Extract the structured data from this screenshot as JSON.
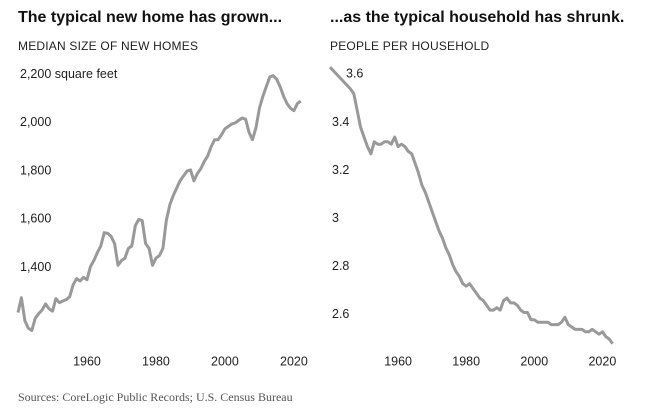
{
  "chart_data": [
    {
      "type": "line",
      "title": "The typical new home has grown...",
      "subtitle": "MEDIAN SIZE OF NEW HOMES",
      "color": "#999999",
      "x": [
        1940,
        1941,
        1942,
        1943,
        1944,
        1945,
        1946,
        1947,
        1948,
        1949,
        1950,
        1951,
        1952,
        1953,
        1954,
        1955,
        1956,
        1957,
        1958,
        1959,
        1960,
        1961,
        1962,
        1963,
        1964,
        1965,
        1966,
        1967,
        1968,
        1969,
        1970,
        1971,
        1972,
        1973,
        1974,
        1975,
        1976,
        1977,
        1978,
        1979,
        1980,
        1981,
        1982,
        1983,
        1984,
        1985,
        1986,
        1987,
        1988,
        1989,
        1990,
        1991,
        1992,
        1993,
        1994,
        1995,
        1996,
        1997,
        1998,
        1999,
        2000,
        2001,
        2002,
        2003,
        2004,
        2005,
        2006,
        2007,
        2008,
        2009,
        2010,
        2011,
        2012,
        2013,
        2014,
        2015,
        2016,
        2017,
        2018,
        2019,
        2020,
        2021,
        2022
      ],
      "values": [
        1214,
        1276,
        1180,
        1150,
        1140,
        1190,
        1210,
        1225,
        1250,
        1230,
        1220,
        1272,
        1255,
        1262,
        1268,
        1280,
        1330,
        1355,
        1345,
        1360,
        1350,
        1404,
        1430,
        1462,
        1490,
        1545,
        1542,
        1530,
        1500,
        1410,
        1430,
        1440,
        1480,
        1490,
        1574,
        1600,
        1595,
        1500,
        1480,
        1410,
        1440,
        1450,
        1480,
        1595,
        1660,
        1698,
        1730,
        1760,
        1780,
        1800,
        1805,
        1760,
        1790,
        1810,
        1840,
        1863,
        1900,
        1930,
        1930,
        1950,
        1975,
        1985,
        1995,
        2000,
        2010,
        2020,
        2015,
        1960,
        1930,
        1980,
        2060,
        2110,
        2150,
        2190,
        2195,
        2180,
        2150,
        2110,
        2080,
        2060,
        2050,
        2080,
        2090
      ],
      "xlim": [
        1940,
        2023.5
      ],
      "xticks": [
        1960,
        1980,
        2000,
        2020
      ],
      "ylim": [
        1080,
        2260
      ],
      "yticks": [
        {
          "value": 1400,
          "label": "1,400"
        },
        {
          "value": 1600,
          "label": "1,600"
        },
        {
          "value": 1800,
          "label": "1,800"
        },
        {
          "value": 2000,
          "label": "2,000"
        },
        {
          "value": 2200,
          "label": "2,200 square feet"
        }
      ]
    },
    {
      "type": "line",
      "title": "...as the typical household has shrunk.",
      "subtitle": "PEOPLE PER HOUSEHOLD",
      "color": "#999999",
      "x": [
        1940,
        1942,
        1944,
        1946,
        1947,
        1948,
        1949,
        1950,
        1951,
        1952,
        1953,
        1954,
        1955,
        1956,
        1957,
        1958,
        1959,
        1960,
        1961,
        1962,
        1963,
        1964,
        1965,
        1966,
        1967,
        1968,
        1969,
        1970,
        1971,
        1972,
        1973,
        1974,
        1975,
        1976,
        1977,
        1978,
        1979,
        1980,
        1981,
        1982,
        1983,
        1984,
        1985,
        1986,
        1987,
        1988,
        1989,
        1990,
        1991,
        1992,
        1993,
        1994,
        1995,
        1996,
        1997,
        1998,
        1999,
        2000,
        2001,
        2002,
        2003,
        2004,
        2005,
        2006,
        2007,
        2008,
        2009,
        2010,
        2011,
        2012,
        2013,
        2014,
        2015,
        2016,
        2017,
        2018,
        2019,
        2020,
        2021,
        2022,
        2023
      ],
      "values": [
        3.63,
        3.6,
        3.57,
        3.54,
        3.52,
        3.45,
        3.38,
        3.34,
        3.3,
        3.27,
        3.32,
        3.31,
        3.31,
        3.32,
        3.32,
        3.31,
        3.34,
        3.3,
        3.31,
        3.3,
        3.28,
        3.27,
        3.23,
        3.19,
        3.14,
        3.11,
        3.07,
        3.03,
        2.99,
        2.95,
        2.92,
        2.88,
        2.85,
        2.81,
        2.78,
        2.76,
        2.73,
        2.72,
        2.73,
        2.71,
        2.69,
        2.67,
        2.66,
        2.64,
        2.62,
        2.62,
        2.63,
        2.62,
        2.66,
        2.67,
        2.65,
        2.65,
        2.64,
        2.62,
        2.61,
        2.61,
        2.58,
        2.58,
        2.57,
        2.57,
        2.57,
        2.57,
        2.56,
        2.56,
        2.56,
        2.57,
        2.59,
        2.56,
        2.55,
        2.54,
        2.54,
        2.54,
        2.53,
        2.53,
        2.54,
        2.53,
        2.52,
        2.53,
        2.51,
        2.5,
        2.48
      ],
      "xlim": [
        1940,
        2024
      ],
      "xticks": [
        1960,
        1980,
        2000,
        2020
      ],
      "ylim": [
        2.475,
        3.66
      ],
      "yticks": [
        2.6,
        2.8,
        3.0,
        3.2,
        3.4,
        3.6
      ]
    }
  ],
  "source": "Sources: CoreLogic Public Records; U.S. Census Bureau"
}
